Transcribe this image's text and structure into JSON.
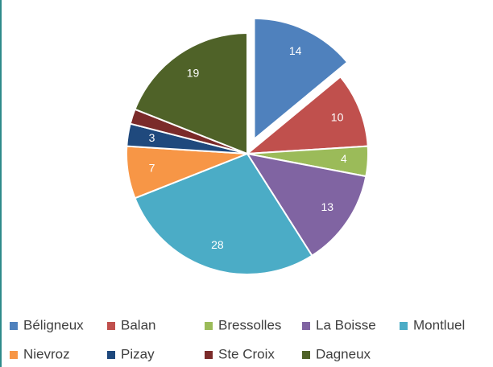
{
  "chart_data": {
    "type": "pie",
    "categories": [
      "Béligneux",
      "Balan",
      "Bressolles",
      "La Boisse",
      "Montluel",
      "Nievroz",
      "Pizay",
      "Ste Croix",
      "Dagneux"
    ],
    "values": [
      14,
      10,
      4,
      13,
      28,
      7,
      3,
      2,
      19
    ],
    "value_labels": [
      14,
      10,
      4,
      13,
      28,
      7,
      3,
      null,
      19
    ],
    "colors": [
      "#4f81bd",
      "#c0504d",
      "#9bbb59",
      "#8064a2",
      "#4bacc6",
      "#f79646",
      "#1f497d",
      "#7b2b2a",
      "#4f6228"
    ],
    "exploded": [
      "Béligneux"
    ],
    "legend": "bottom"
  }
}
